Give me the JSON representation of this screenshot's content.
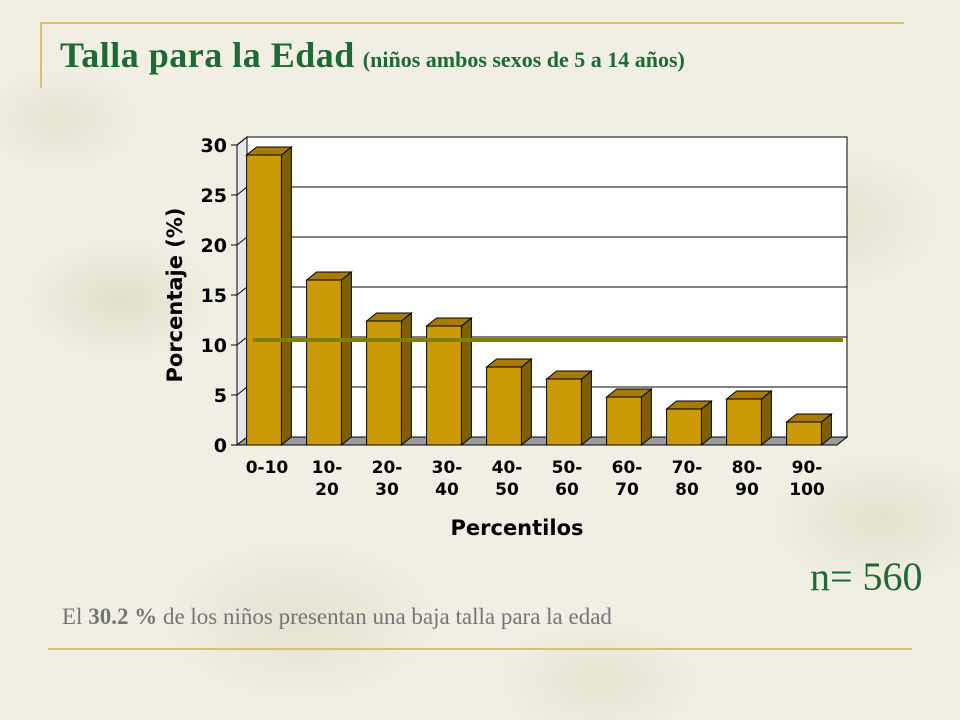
{
  "slide": {
    "title_main": "Talla para la Edad",
    "title_sub": "(niños ambos sexos de 5 a 14 años)",
    "n_label": "n= 560",
    "caption_prefix": "El",
    "caption_value": "30.2 %",
    "caption_suffix": "de los niños presentan una baja talla para la edad"
  },
  "colors": {
    "bar_front": "#cc9a06",
    "bar_side": "#7d5f04",
    "bar_top": "#a67c05",
    "reference_line": "#808000",
    "title": "#1e6a35"
  },
  "chart_data": {
    "type": "bar",
    "categories": [
      "0-10",
      "10-20",
      "20-30",
      "30-40",
      "40-50",
      "50-60",
      "60-70",
      "70-80",
      "80-90",
      "90-100"
    ],
    "category_labels": [
      [
        "0-10",
        ""
      ],
      [
        "10-",
        "20"
      ],
      [
        "20-",
        "30"
      ],
      [
        "30-",
        "40"
      ],
      [
        "40-",
        "50"
      ],
      [
        "50-",
        "60"
      ],
      [
        "60-",
        "70"
      ],
      [
        "70-",
        "80"
      ],
      [
        "80-",
        "90"
      ],
      [
        "90-",
        "100"
      ]
    ],
    "values": [
      29.0,
      16.5,
      12.4,
      11.9,
      7.8,
      6.6,
      4.8,
      3.6,
      4.6,
      2.3
    ],
    "reference_value": 10.5,
    "xlabel": "Percentilos",
    "ylabel": "Porcentaje (%)",
    "ylim": [
      0,
      30
    ],
    "yticks": [
      0,
      5,
      10,
      15,
      20,
      25,
      30
    ],
    "grid": true,
    "style": "3d"
  }
}
